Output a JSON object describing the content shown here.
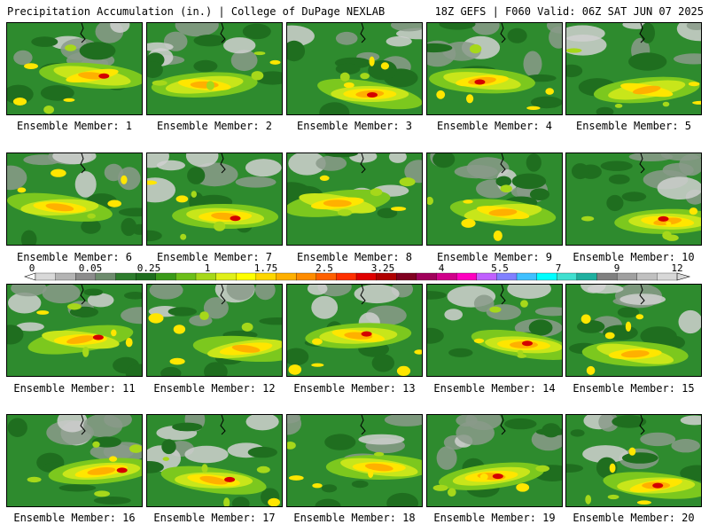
{
  "header": {
    "title_left": "Precipitation Accumulation (in.) | College of DuPage NEXLAB",
    "title_right": "18Z GEFS | F060 Valid: 06Z SAT JUN 07 2025"
  },
  "panels": [
    {
      "label": "Ensemble Member: 1"
    },
    {
      "label": "Ensemble Member: 2"
    },
    {
      "label": "Ensemble Member: 3"
    },
    {
      "label": "Ensemble Member: 4"
    },
    {
      "label": "Ensemble Member: 5"
    },
    {
      "label": "Ensemble Member: 6"
    },
    {
      "label": "Ensemble Member: 7"
    },
    {
      "label": "Ensemble Member: 8"
    },
    {
      "label": "Ensemble Member: 9"
    },
    {
      "label": "Ensemble Member: 10"
    },
    {
      "label": "Ensemble Member: 11"
    },
    {
      "label": "Ensemble Member: 12"
    },
    {
      "label": "Ensemble Member: 13"
    },
    {
      "label": "Ensemble Member: 14"
    },
    {
      "label": "Ensemble Member: 15"
    },
    {
      "label": "Ensemble Member: 16"
    },
    {
      "label": "Ensemble Member: 17"
    },
    {
      "label": "Ensemble Member: 18"
    },
    {
      "label": "Ensemble Member: 19"
    },
    {
      "label": "Ensemble Member: 20"
    }
  ],
  "colorbar": {
    "tick_labels": [
      "0",
      "0.05",
      "0.25",
      "1",
      "1.75",
      "2.5",
      "3.25",
      "4",
      "5.5",
      "7",
      "9",
      "12"
    ],
    "colors": [
      "#d9d9d9",
      "#b4b4b4",
      "#8c8c8c",
      "#6e8c6e",
      "#2e7d2e",
      "#1f6e1f",
      "#3a9a1a",
      "#6cbf1a",
      "#a6d81a",
      "#e0f01a",
      "#ffff00",
      "#ffd700",
      "#ffb000",
      "#ff8c00",
      "#ff6000",
      "#ff3000",
      "#e00000",
      "#b00000",
      "#800020",
      "#a0005a",
      "#d0008a",
      "#ff00c0",
      "#c060ff",
      "#8080ff",
      "#40c0ff",
      "#00ffff",
      "#40e0d0",
      "#20b0a0",
      "#808080",
      "#a0a0a0",
      "#c0c0c0",
      "#d8d8d8"
    ]
  }
}
